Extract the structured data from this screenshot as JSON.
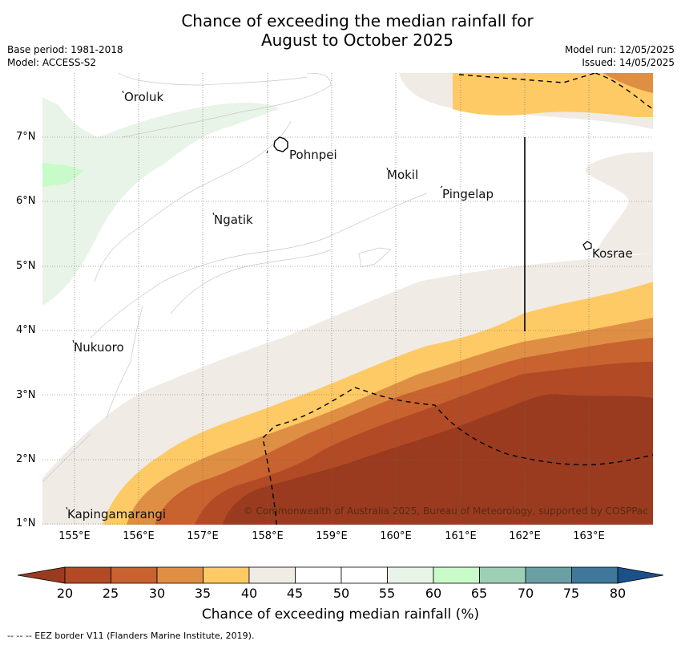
{
  "title_line1": "Chance of exceeding the median rainfall for",
  "title_line2": "August to October 2025",
  "base_period": "Base period: 1981-2018",
  "model": "Model: ACCESS-S2",
  "model_run": "Model run: 12/05/2025",
  "issued": "Issued: 14/05/2025",
  "copyright": "© Commonwealth of Australia 2025, Bureau of Meteorology, supported by COSPPac",
  "lat_labels": [
    "7°N",
    "6°N",
    "5°N",
    "4°N",
    "3°N",
    "2°N",
    "1°N"
  ],
  "lon_labels": [
    "155°E",
    "156°E",
    "157°E",
    "158°E",
    "159°E",
    "160°E",
    "161°E",
    "162°E",
    "163°E"
  ],
  "places": {
    "oroluk": "Oroluk",
    "pohnpei": "Pohnpei",
    "mokil": "Mokil",
    "pingelap": "Pingelap",
    "ngatik": "Ngatik",
    "kosrae": "Kosrae",
    "nukuoro": "Nukuoro",
    "kapingamarangi": "Kapingamarangi"
  },
  "colorbar": {
    "ticks": [
      "20",
      "25",
      "30",
      "35",
      "40",
      "45",
      "50",
      "55",
      "60",
      "65",
      "70",
      "75",
      "80"
    ],
    "label": "Chance of exceeding median rainfall (%)",
    "colors": [
      "#9a3b20",
      "#b24a26",
      "#c8622f",
      "#df8f43",
      "#fdca66",
      "#f0ebe5",
      "#ffffff",
      "#ffffff",
      "#e8f4e8",
      "#c9fac9",
      "#9ccfb6",
      "#6aa0a4",
      "#3f789a",
      "#1b5088"
    ]
  },
  "footnote": "--  --  -- EEZ border V11 (Flanders Marine Institute, 2019)."
}
